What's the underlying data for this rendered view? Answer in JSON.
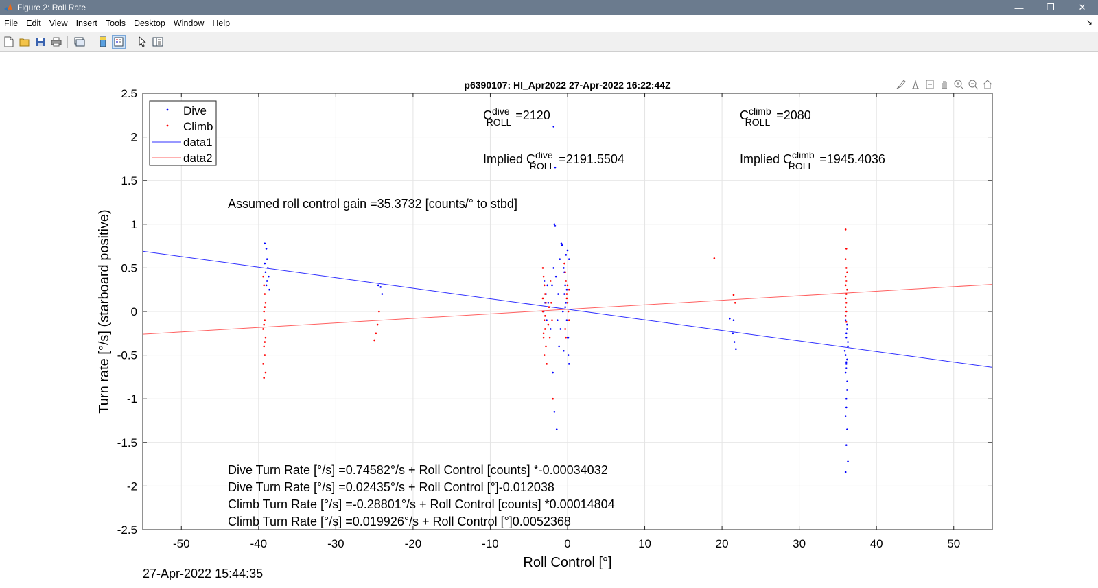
{
  "window": {
    "title": "Figure 2: Roll Rate",
    "minimize": "—",
    "restore": "❐",
    "close": "✕"
  },
  "menu": [
    "File",
    "Edit",
    "View",
    "Insert",
    "Tools",
    "Desktop",
    "Window",
    "Help"
  ],
  "figure": {
    "title": "p6390107: HI_Apr2022 27-Apr-2022 16:22:44Z",
    "gain_text": "Assumed roll control gain =35.3732 [counts/° to stbd]",
    "c_dive": {
      "prefix": "C",
      "sup": "dive",
      "sub": "ROLL",
      "value": "=2120"
    },
    "c_climb": {
      "prefix": "C",
      "sup": "climb",
      "sub": "ROLL",
      "value": "=2080"
    },
    "implied_dive": {
      "prefix": "Implied C",
      "sup": "dive",
      "sub": "ROLL",
      "value": "=2191.5504"
    },
    "implied_climb": {
      "prefix": "Implied C",
      "sup": "climb",
      "sub": "ROLL",
      "value": "=1945.4036"
    },
    "equations": [
      "Dive Turn Rate [°/s] =0.74582°/s + Roll Control [counts] *-0.00034032",
      "Dive Turn Rate [°/s] =0.02435°/s + Roll Control [°]-0.012038",
      "Climb Turn Rate [°/s] =-0.28801°/s + Roll Control [counts] *0.00014804",
      "Climb Turn Rate [°/s] =0.019926°/s + Roll Control [°]0.0052368"
    ],
    "timestamp": "27-Apr-2022 15:44:35"
  },
  "chart_data": {
    "type": "scatter",
    "title": "p6390107: HI_Apr2022 27-Apr-2022 16:22:44Z",
    "xlabel": "Roll Control [°]",
    "ylabel": "Turn rate [°/s] (starboard positive)",
    "xlim": [
      -55,
      55
    ],
    "ylim": [
      -2.5,
      2.5
    ],
    "xticks": [
      -50,
      -40,
      -30,
      -20,
      -10,
      0,
      10,
      20,
      30,
      40,
      50
    ],
    "yticks": [
      2.5,
      2,
      1.5,
      1,
      0.5,
      0,
      -0.5,
      -1,
      -1.5,
      -2,
      -2.5
    ],
    "grid": true,
    "legend_position": "top-left",
    "legend": [
      "Dive",
      "Climb",
      "data1",
      "data2"
    ],
    "series": [
      {
        "name": "Dive",
        "kind": "points",
        "color": "#0000ff",
        "x": [
          -39.2,
          -39.0,
          -38.9,
          -38.8,
          -39.1,
          -38.7,
          -38.9,
          -39.0,
          -38.6,
          -39.2,
          -24.5,
          -24.2,
          -24.0,
          -3.0,
          -2.8,
          -2.9,
          -3.1,
          -2.7,
          -2.5,
          -2.0,
          -1.8,
          -1.7,
          -1.6,
          -1.5,
          -1.2,
          -1.0,
          -0.8,
          -0.7,
          -0.5,
          -0.3,
          -0.2,
          -0.1,
          0.0,
          0.1,
          0.2,
          -0.4,
          -0.6,
          -0.9,
          -1.1,
          -1.3,
          0.0,
          -0.2,
          -0.4,
          -0.1,
          0.1,
          -1.8,
          -1.6,
          -1.9,
          -1.7,
          -1.4,
          -2.2,
          -2.6,
          -0.3,
          -0.5,
          0.2,
          21.0,
          21.4,
          21.6,
          21.8,
          21.5,
          36.0,
          36.2,
          36.1,
          36.3,
          35.9,
          36.0,
          36.2,
          36.1,
          36.0,
          36.3,
          36.1,
          36.2,
          36.0,
          36.1,
          36.2,
          36.1,
          36.0,
          36.2,
          36.1,
          36.3,
          36.0,
          36.1,
          36.2,
          36.1
        ],
        "y": [
          0.78,
          0.72,
          0.6,
          0.5,
          0.45,
          0.4,
          0.35,
          0.3,
          0.25,
          0.55,
          0.3,
          0.28,
          0.2,
          0.35,
          0.2,
          0.1,
          0.0,
          -0.1,
          0.1,
          0.3,
          0.5,
          1.0,
          0.98,
          0.4,
          0.2,
          0.6,
          0.78,
          0.76,
          0.5,
          0.3,
          0.1,
          -0.1,
          -0.3,
          -0.5,
          -0.6,
          0.2,
          0.0,
          -0.2,
          -0.4,
          -0.1,
          0.7,
          0.65,
          0.45,
          0.25,
          -0.3,
          2.12,
          1.65,
          -0.7,
          -1.15,
          -1.35,
          -0.2,
          0.3,
          0.05,
          -0.45,
          0.6,
          -0.08,
          -0.25,
          -0.35,
          -0.43,
          -0.1,
          -0.1,
          -0.2,
          -0.3,
          -0.4,
          -0.45,
          -0.5,
          -0.55,
          -0.6,
          -0.7,
          -0.35,
          -0.25,
          -0.15,
          -0.05,
          -0.65,
          -0.9,
          -1.1,
          -1.2,
          -1.35,
          -1.53,
          -1.72,
          -1.84,
          -1.0,
          -0.8,
          -0.58
        ],
        "marker": "point"
      },
      {
        "name": "Climb",
        "kind": "points",
        "color": "#ff0000",
        "x": [
          -39.4,
          -39.3,
          -39.2,
          -39.1,
          -39.3,
          -39.2,
          -39.4,
          -39.1,
          -39.3,
          -39.2,
          -39.4,
          -39.1,
          -39.3,
          -39.2,
          -39.3,
          -39.2,
          -25.0,
          -24.8,
          -24.6,
          -24.4,
          -3.2,
          -3.1,
          -3.0,
          -2.9,
          -2.8,
          -3.2,
          -3.0,
          -2.9,
          -3.1,
          -2.8,
          -3.0,
          -2.7,
          -3.2,
          -2.9,
          -3.1,
          -2.2,
          -2.1,
          -2.0,
          -2.3,
          -1.9,
          -0.4,
          -0.3,
          -0.2,
          -0.1,
          0.0,
          0.1,
          0.2,
          -0.3,
          -0.2,
          0.0,
          -0.1,
          0.2,
          -2.4,
          -2.5,
          19.0,
          21.5,
          21.7,
          36.0,
          36.1,
          36.0,
          36.1,
          36.2,
          36.0,
          36.1,
          36.0,
          36.2,
          36.1,
          36.0,
          36.1,
          36.0,
          36.1,
          36.0,
          36.1
        ],
        "y": [
          0.4,
          0.3,
          0.2,
          0.1,
          0.0,
          -0.1,
          -0.2,
          -0.3,
          -0.4,
          -0.5,
          -0.6,
          -0.7,
          -0.76,
          0.05,
          -0.15,
          -0.35,
          -0.33,
          -0.25,
          -0.15,
          0.0,
          0.5,
          0.4,
          0.3,
          0.2,
          0.1,
          0.0,
          -0.1,
          -0.2,
          -0.3,
          -0.4,
          -0.5,
          -0.6,
          0.15,
          -0.05,
          -0.25,
          0.35,
          0.1,
          -0.1,
          -0.3,
          -1.0,
          0.55,
          0.45,
          0.35,
          0.2,
          0.1,
          0.0,
          -0.1,
          -0.2,
          -0.3,
          0.3,
          0.15,
          0.25,
          0.05,
          -0.15,
          0.61,
          0.19,
          0.1,
          0.94,
          0.72,
          0.6,
          0.5,
          0.45,
          0.4,
          0.35,
          0.3,
          0.25,
          0.2,
          0.15,
          0.1,
          0.05,
          0.0,
          -0.05,
          -0.12
        ],
        "marker": "point"
      },
      {
        "name": "data1",
        "kind": "line",
        "color": "#3030ff",
        "x": [
          -55,
          55
        ],
        "y": [
          0.69,
          -0.64
        ]
      },
      {
        "name": "data2",
        "kind": "line",
        "color": "#ff6060",
        "x": [
          -55,
          55
        ],
        "y": [
          -0.26,
          0.31
        ]
      }
    ]
  },
  "colors": {
    "titlebar": "#6b7b8e",
    "dive": "#0000ff",
    "climb": "#ff0000",
    "grid": "#e4e4e4"
  },
  "toolbar_icons": [
    "new-figure-icon",
    "open-file-icon",
    "save-icon",
    "print-icon",
    "link-plot-icon",
    "colorbar-icon",
    "legend-icon",
    "pointer-icon",
    "property-inspector-icon"
  ],
  "axes_toolbar_icons": [
    "brush-icon",
    "data-tips-icon",
    "export-icon",
    "pan-icon",
    "zoom-in-icon",
    "zoom-out-icon",
    "home-icon"
  ]
}
